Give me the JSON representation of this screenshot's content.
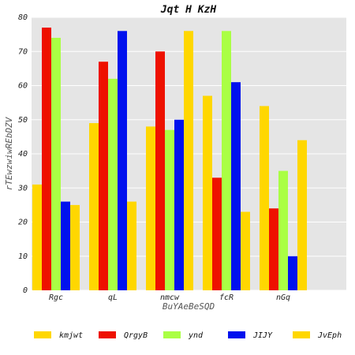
{
  "chart_data": {
    "type": "bar",
    "title": "Jqt H KzH",
    "xlabel": "BuYAeBeSQD",
    "ylabel": "rTEwzwiwREbDZV",
    "categories": [
      "Rgc",
      "qL",
      "nmcw",
      "fcR",
      "nGq"
    ],
    "ylim": [
      0,
      80
    ],
    "yticks": [
      0,
      10,
      20,
      30,
      40,
      50,
      60,
      70,
      80
    ],
    "grid": true,
    "legend_position": "bottom",
    "background_color": "#e5e5e5",
    "series": [
      {
        "name": "kmjwt",
        "color": "#ffd700",
        "values": [
          31,
          49,
          48,
          57,
          54
        ]
      },
      {
        "name": "QrgyB",
        "color": "#ee1100",
        "values": [
          77,
          67,
          70,
          33,
          24
        ]
      },
      {
        "name": "ynd",
        "color": "#aaff44",
        "values": [
          74,
          62,
          47,
          76,
          35
        ]
      },
      {
        "name": "JIJY",
        "color": "#0011ee",
        "values": [
          26,
          76,
          50,
          61,
          10
        ]
      },
      {
        "name": "JvEph",
        "color": "#ffd700",
        "values": [
          25,
          26,
          76,
          23,
          44
        ]
      }
    ]
  }
}
